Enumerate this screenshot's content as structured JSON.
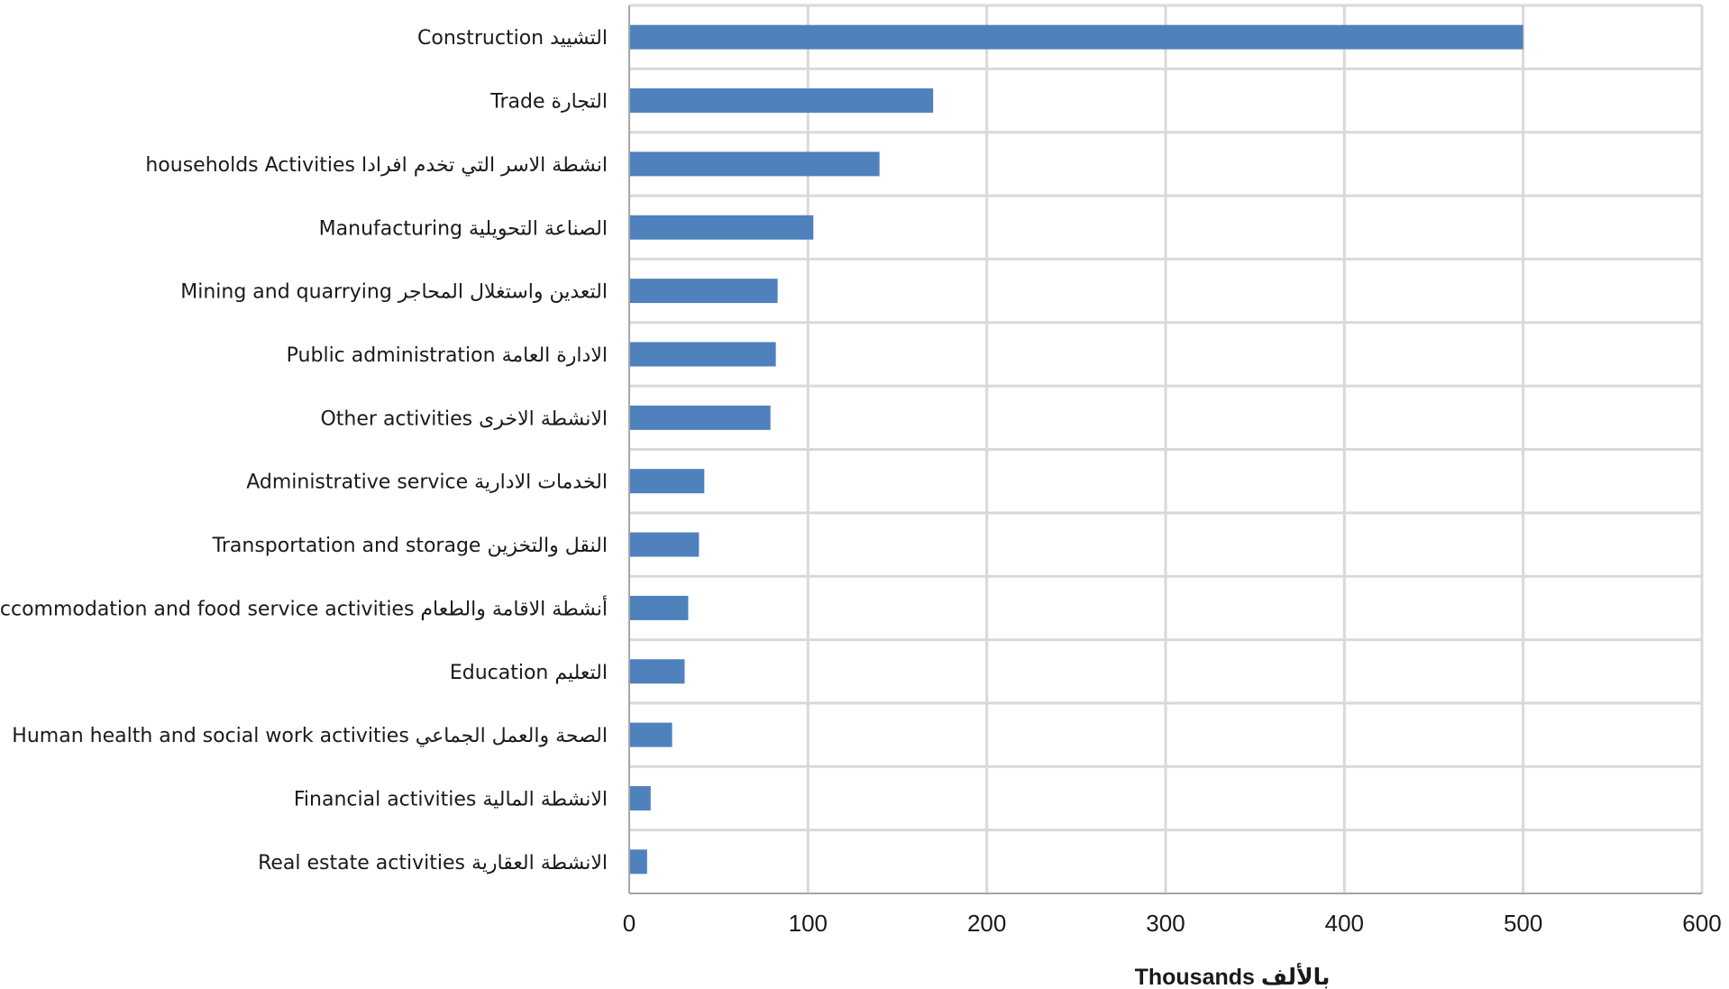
{
  "chart_data": {
    "type": "bar",
    "orientation": "horizontal",
    "categories": [
      "التشييد Construction",
      "التجارة Trade",
      "انشطة الاسر التي تخدم افرادا households Activities",
      "الصناعة التحويلية Manufacturing",
      "التعدين واستغلال المحاجر Mining and quarrying",
      "الادارة العامة Public administration",
      "الانشطة الاخرى Other activities",
      "الخدمات الادارية Administrative service",
      "النقل والتخزين Transportation and storage",
      "أنشطة الاقامة والطعام Accommodation and food service activities",
      "التعليم Education",
      "الصحة والعمل الجماعي Human health and social work activities",
      "الانشطة المالية Financial activities",
      "الانشطة العقارية Real estate activities"
    ],
    "values": [
      500,
      170,
      140,
      103,
      83,
      82,
      79,
      42,
      39,
      33,
      31,
      24,
      12,
      10
    ],
    "xlabel": "بالألف Thousands",
    "ylabel": "",
    "xlim": [
      0,
      600
    ],
    "xticks": [
      "0",
      "100",
      "200",
      "300",
      "400",
      "500",
      "600"
    ],
    "grid": true,
    "bar_color": "#4f81bd",
    "grid_color": "#d9d9d9",
    "axis_color": "#a6a6a6"
  }
}
